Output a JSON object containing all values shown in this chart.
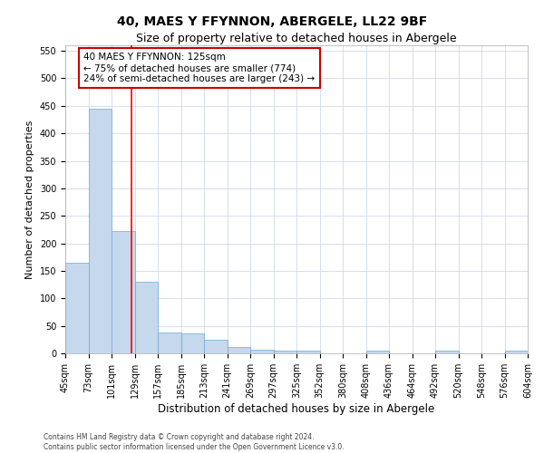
{
  "title": "40, MAES Y FFYNNON, ABERGELE, LL22 9BF",
  "subtitle": "Size of property relative to detached houses in Abergele",
  "xlabel": "Distribution of detached houses by size in Abergele",
  "ylabel": "Number of detached properties",
  "bar_values": [
    165,
    445,
    222,
    130,
    38,
    36,
    25,
    11,
    6,
    5,
    5,
    0,
    0,
    5,
    0,
    0,
    5,
    0,
    0,
    5
  ],
  "xtick_labels": [
    "45sqm",
    "73sqm",
    "101sqm",
    "129sqm",
    "157sqm",
    "185sqm",
    "213sqm",
    "241sqm",
    "269sqm",
    "297sqm",
    "325sqm",
    "352sqm",
    "380sqm",
    "408sqm",
    "436sqm",
    "464sqm",
    "492sqm",
    "520sqm",
    "548sqm",
    "576sqm",
    "604sqm"
  ],
  "bar_color": "#c5d8ed",
  "bar_edge_color": "#6aaad4",
  "bar_width": 1.0,
  "ylim": [
    0,
    560
  ],
  "yticks": [
    0,
    50,
    100,
    150,
    200,
    250,
    300,
    350,
    400,
    450,
    500,
    550
  ],
  "annotation_text": "40 MAES Y FFYNNON: 125sqm\n← 75% of detached houses are smaller (774)\n24% of semi-detached houses are larger (243) →",
  "annotation_box_color": "#ffffff",
  "annotation_box_edge_color": "#cc0000",
  "footer_line1": "Contains HM Land Registry data © Crown copyright and database right 2024.",
  "footer_line2": "Contains public sector information licensed under the Open Government Licence v3.0.",
  "bg_color": "#ffffff",
  "grid_color": "#d0d8e8",
  "title_fontsize": 10,
  "subtitle_fontsize": 9,
  "tick_fontsize": 7,
  "ylabel_fontsize": 8,
  "xlabel_fontsize": 8.5,
  "annotation_fontsize": 7.5,
  "footer_fontsize": 5.5
}
